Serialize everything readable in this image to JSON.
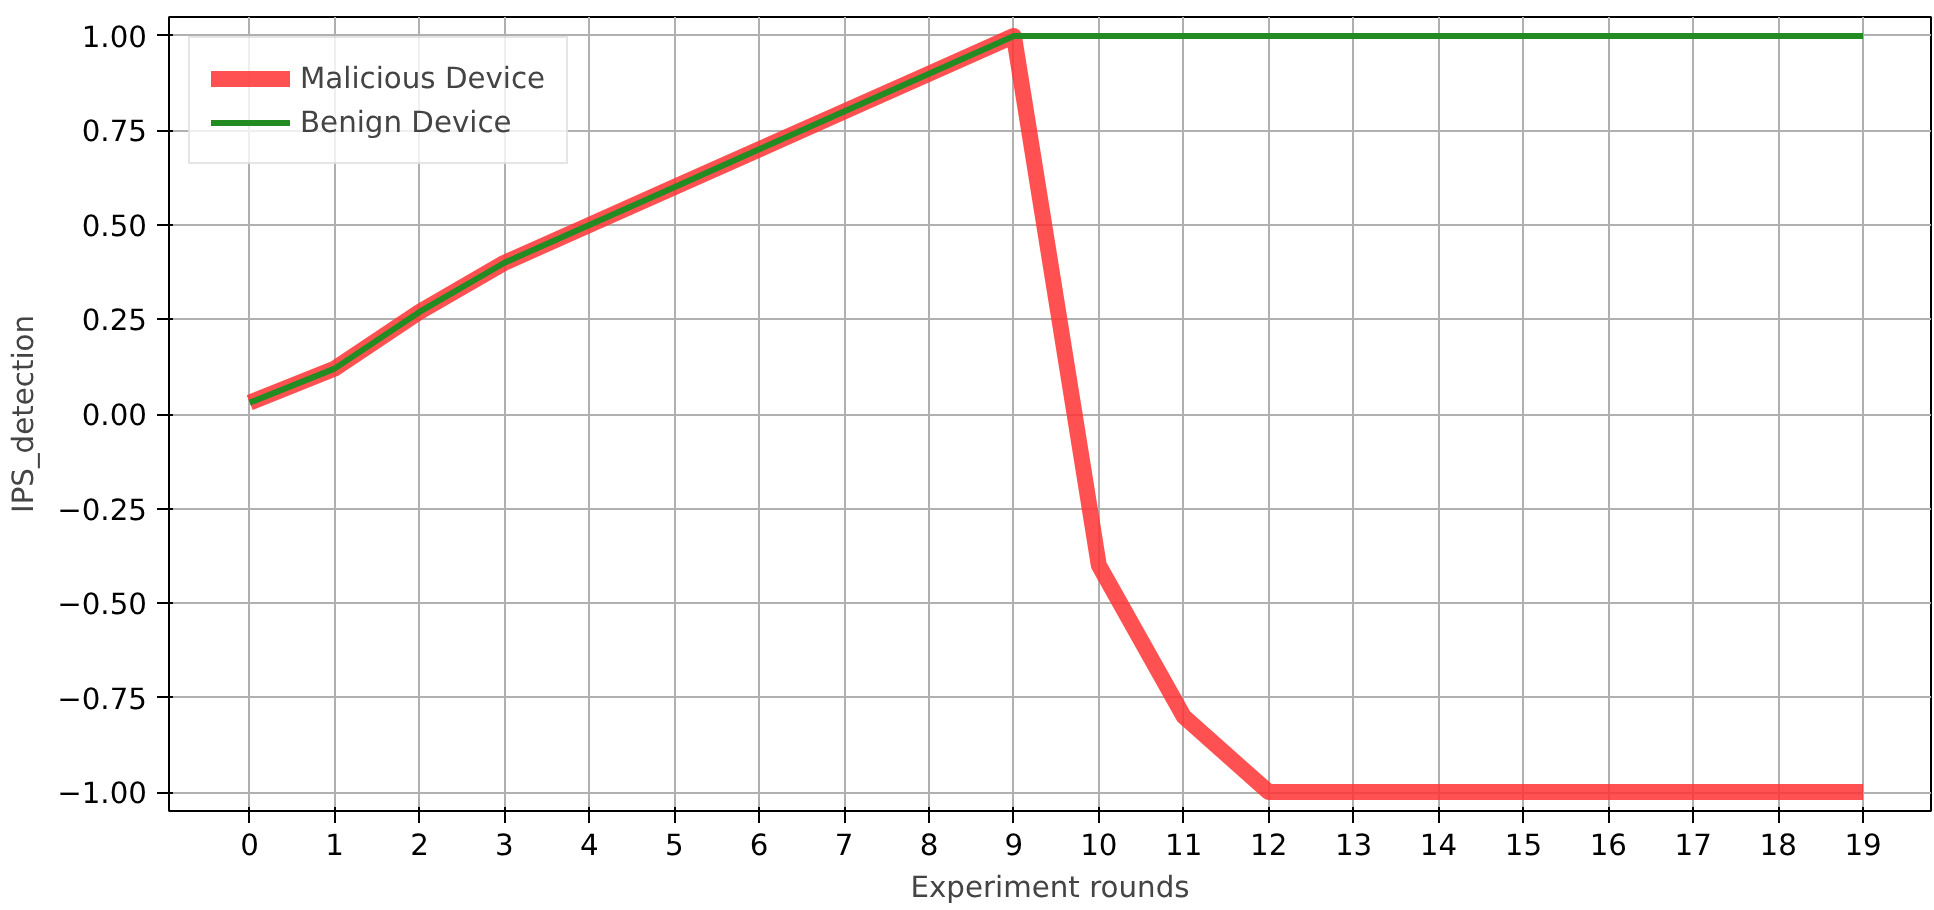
{
  "chart_data": {
    "type": "line",
    "xlabel": "Experiment rounds",
    "ylabel": "IPS_detection",
    "x": [
      0,
      1,
      2,
      3,
      4,
      5,
      6,
      7,
      8,
      9,
      10,
      11,
      12,
      13,
      14,
      15,
      16,
      17,
      18,
      19
    ],
    "series": [
      {
        "name": "Malicious Device",
        "color": "#ff3333",
        "values": [
          0.03,
          0.12,
          0.27,
          0.4,
          0.5,
          0.6,
          0.7,
          0.8,
          0.9,
          1.0,
          -0.4,
          -0.8,
          -1.0,
          -1.0,
          -1.0,
          -1.0,
          -1.0,
          -1.0,
          -1.0,
          -1.0
        ]
      },
      {
        "name": "Benign Device",
        "color": "#228b22",
        "values": [
          0.03,
          0.12,
          0.27,
          0.4,
          0.5,
          0.6,
          0.7,
          0.8,
          0.9,
          1.0,
          1.0,
          1.0,
          1.0,
          1.0,
          1.0,
          1.0,
          1.0,
          1.0,
          1.0,
          1.0
        ]
      }
    ],
    "xlim": [
      -0.95,
      19.8
    ],
    "ylim": [
      -1.05,
      1.05
    ],
    "xticks": [
      0,
      1,
      2,
      3,
      4,
      5,
      6,
      7,
      8,
      9,
      10,
      11,
      12,
      13,
      14,
      15,
      16,
      17,
      18,
      19
    ],
    "yticks": [
      {
        "value": -1,
        "label": "−1.00"
      },
      {
        "value": -0.75,
        "label": "−0.75"
      },
      {
        "value": -0.5,
        "label": "−0.50"
      },
      {
        "value": -0.25,
        "label": "−0.25"
      },
      {
        "value": 0,
        "label": "0.00"
      },
      {
        "value": 0.25,
        "label": "0.25"
      },
      {
        "value": 0.5,
        "label": "0.50"
      },
      {
        "value": 0.75,
        "label": "0.75"
      },
      {
        "value": 1,
        "label": "1.00"
      }
    ],
    "grid": true,
    "legend": "top left",
    "line_style": "solid"
  }
}
